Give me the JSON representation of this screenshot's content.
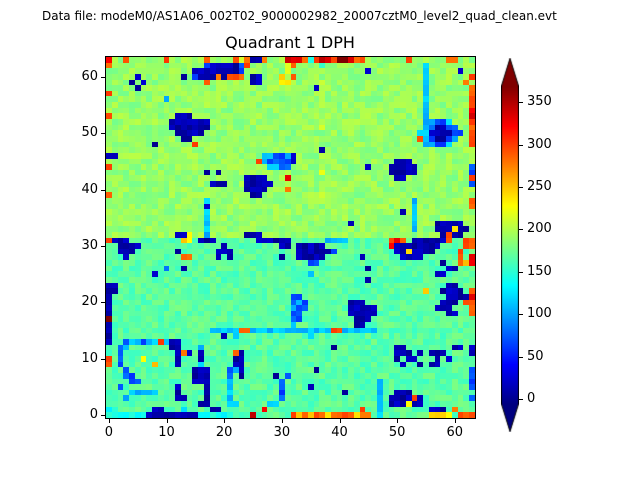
{
  "header": {
    "text": "Data file: modeM0/AS1A06_002T02_9000002982_20007cztM0_level2_quad_clean.evt"
  },
  "colors": {
    "axes": "#000000",
    "background": "#ffffff",
    "text": "#000000"
  },
  "chart_data": {
    "type": "heatmap",
    "title": "Quadrant 1 DPH",
    "suptitle": "Data file: modeM0/AS1A06_002T02_9000002982_20007cztM0_level2_quad_clean.evt",
    "grid_size": [
      64,
      64
    ],
    "x_range": [
      -0.5,
      63.5
    ],
    "y_range": [
      -0.5,
      63.5
    ],
    "x_ticks": [
      0,
      10,
      20,
      30,
      40,
      50,
      60
    ],
    "y_ticks": [
      0,
      10,
      20,
      30,
      40,
      50,
      60
    ],
    "colormap": "jet",
    "vmin": -6,
    "vmax": 369,
    "colorbar_ticks": [
      0,
      50,
      100,
      150,
      200,
      250,
      300,
      350
    ],
    "colorbar_extend": "both",
    "legend_position": "right",
    "grid_on": false,
    "palette": {
      "N": 12,
      "B": 70,
      "C": 112,
      "c": 142,
      ".": 168,
      ",": 190,
      "y": 215,
      "Y": 240,
      "o": 290,
      "r": 335,
      "R": 368
    },
    "noise_amplitude": 13,
    "rows_top_to_bottom": [
      [
        "r,,o,,,,",
        ",,o,,,,,",
        ",o,,,,oy",
        "oNNo,,,r",
        "rrocorro",
        "RRroo,,,",
        ",,,,o,,,",
        ",,,oo,,,"
      ],
      [
        "o,,,,,,,",
        ",,,,,,,,",
        ",BNNNNNB",
        "o,,,,,,y",
        "o,,,,c,,",
        ",,,,,,,,",
        ",,,,,,,C",
        ",,,,,,,,"
      ],
      [
        ",,,,,,,,",
        ",,,,,,,N",
        "NNNNNNNB",
        ",,,,,,,y",
        ",,,,,,,,",
        ",,,,,N,,",
        ",,,,,,,C",
        ",,,,,N,,"
      ],
      [
        ",,,,,N,,",
        ",,,,,N,B",
        "NNNoNooo",
        ",NN,,,Y,",
        "o,,,,,,,",
        ",,,,,,,,",
        ",,,,,,,C",
        ",,,,,,,o"
      ],
      [
        ",,,,N,N,",
        ",,,,,,,,",
        ",o,,,,,,",
        ",NN,,,YY",
        ",,,,,y,,",
        ",,,,,,,,",
        ",,,,,,,C",
        ",,,,,,o,"
      ],
      [
        ",,,,,N,,",
        ",,,,,,,,",
        ",,,,,,,,",
        ",,,,,,,,",
        ",,,,N,,,",
        ",,,,,,,,",
        ",,,,,,,C",
        ",,,,,,,o"
      ],
      [
        "o,,,,,,,",
        ",,,,,,,,",
        ",,,,,,,,",
        ",,,,,,,,",
        ",,,,,,,,",
        ",,,,,,,,",
        ",,,,,,,C",
        ",,,,,,,o"
      ],
      [
        ",,,,,,,,",
        ",,C,,,,,",
        ",,,,,,,,",
        ",,,,,,,,",
        ",,,,,,,,",
        ",,,,,,,,",
        ",,,,,,,C",
        ",,,,,,,o"
      ],
      [
        ",,,,,,,,",
        ",,,,,,,,",
        ",,,,,,,,",
        ",,,,,,,,",
        ",,,,,y,,",
        ",,,,,,,,",
        ",,,,,,,C",
        ",,,,,,,o"
      ],
      [
        ",,,,,,,,",
        ",,,,,,,,",
        ",,,,,,,,",
        ",,,,,,,,",
        ",,,,,,,,",
        ",,,,,,,,",
        ",,,,,,,C",
        ",,,,,,,r"
      ],
      [
        "o,,,,,,,",
        ",,,,NNN,",
        ",,,,,,,,",
        ",,,,,,,,",
        ",,,,,,,,",
        ",,,,,,,,",
        ",,,,,,,C",
        ",,,,,,,r"
      ],
      [
        ",,,,,,,,",
        ",,,NNNNN",
        "NN,,,,,,",
        ",,,,,,,,",
        ",,,,,,,,",
        ",,,,,,,,",
        ",,,,,,,C",
        "CBBC,,,o"
      ],
      [
        ",,,,,,,,",
        ",,,NNNNN",
        "NN,,,,,,",
        ",,,,,,,,",
        ",,,,,y,,",
        ",,,,,,,,",
        ",,,,,,,C",
        "BNNBB,,o"
      ],
      [
        ",,,,,,,,",
        ",,,,NNNN",
        "N,,,,,,,",
        ",,,,,,,,",
        ",,,,,,,,",
        ",,,,,,,,",
        ",,,,,,CC",
        "NNNNBB,o"
      ],
      [
        ",,,,,,,,",
        ",,,,,NN,",
        ",,,,,,,,",
        ",,,,,,,,",
        ",,,,,,,,",
        ",,,,,,,,",
        ",,,,,,oC",
        "BNNBC,,o"
      ],
      [
        ",,,,,,,,",
        "N,,,,,,o",
        ",,,,,,,,",
        ",,,,,,,,",
        ",,,,,,,,",
        ",,,,,,,,",
        ",,,,,,,C",
        "CBBC,,,o"
      ],
      [
        ",,,,,,,,",
        ",,,,,,,,",
        ",,,,,,,,",
        ",,,,,,,,",
        ",,,,,N,,",
        ",,,,,,,,",
        ",,,,,,,,",
        ",,,,,,,,"
      ],
      [
        "NN,,,,,,",
        ",,,,,,,,",
        ",,,,,,,,",
        ",,,CCBBC",
        "N,,,,,,,",
        ",,,,,,,,",
        ",,,,,,,,",
        ",,,,,,,,"
      ],
      [
        ",,,,,,,,",
        ",,,,,,,,",
        ",,,,,,,,",
        ",,oCBBBB",
        "N,,,,,,,",
        ",,,,,,,,",
        ",,NNN,,,",
        ",,,,,,,,"
      ],
      [
        "o,,,,,,,",
        ",,,,,,,,",
        ",,,,,,,,",
        ",,,,CCBB",
        ",,,,,,,,",
        ",,,,,N,,",
        ",NNNNN,,",
        ",,,,,,,B"
      ],
      [
        ",,,,,,,,",
        ",,,,,,,,",
        ",N,N,,,,",
        ",,,,,,,,",
        ",,,,,y,,",
        ",,,,,,,,",
        ",NNNNN,,",
        ",,,,,,,B"
      ],
      [
        ",,,,,,,,",
        ",,,,,,,,",
        ",,,,,,,,",
        "NNNN,,,r",
        ",,,,,,,,",
        ",,,,,,,,",
        ",,NN,,,,",
        ",,,,,,,o"
      ],
      [
        ",,,,,,,,",
        ",,,,,,,,",
        ",,NNN,,,",
        "NNNNN,,,",
        ",,,,,,,,",
        ",,,,,,,,",
        ",,,,,,,,",
        ",,,,,,,B"
      ],
      [
        ",,,,,,,,",
        ",,,,,,,,",
        ",,,,,,,,",
        "NNNN,,,o",
        ",,,,,,,,",
        ",,,,,,,,",
        ",,,,,,,,",
        ",,,,,,,,"
      ],
      [
        "o,,,,,,,",
        ",,,,,,,,",
        ",,,,,,,,",
        ",NN,,,,,",
        ",,,,,y,,",
        ",,,,,,,,",
        ",,,,,,,,",
        ",,,,,,,,"
      ],
      [
        ",,,,,,,,",
        ",,,,,,,,",
        ",C,,,,,,",
        ",,,,,,,,",
        ",,,,,,,,",
        ",,,,,,,,",
        ",,,,,C,,",
        ",,,,,,,o"
      ],
      [
        ",,,,,,,,",
        ",,,,,,,,",
        ",N,,,,,,",
        ",,,,,,,,",
        ",,,,,,,,",
        ",,,,,,,,",
        ",,,,,C,,",
        ",,,,,,,o"
      ],
      [
        ",,,,,,,,",
        ",,,,,,,,",
        ",C,,,,,,",
        ",,,,,,,,",
        ",,,,,,,,",
        ",,,,,,,,",
        ",,,N,C,,",
        ",,,,,,,,"
      ],
      [
        ",,,,,,,,",
        ",,,,,,,,",
        ",C,,,,,,",
        ",,,,,,,,",
        ",,,,,,,,",
        ",,,,,,,,",
        ",,,,,C,,",
        ",,,,,,,,"
      ],
      [
        ",,,,,,,,",
        ",,,,,,,,",
        ",C,,,,,,",
        ",,,,,,,,",
        ",,,,,,,,",
        ",,N,,,,,",
        ",,,,,C,,",
        ",NNNNN,,"
      ],
      [
        ",,,,,,,,",
        ",,,,,,,,",
        ",C,,,,,,",
        ",,,,,,,,",
        ",,,,,,,,",
        ",,,,,,,,",
        ",,,,,C,,",
        ",NNNYNN,"
      ],
      [
        ",,,,,,,,",
        ",,,,NNY,",
        ",C,,,,,,",
        "NNN,,,,,",
        ",,,,,,,,",
        ",,,,,,,,",
        ",,,,,,,,",
        ",,NoNN,,"
      ],
      [
        "oNNN....",
        ".....YY.",
        "NNN.....",
        "..NNNNNN",
        "......CC",
        "CC......",
        ".oro.NNN",
        "NNNo..oo"
      ],
      [
        "..NNNN..",
        "........",
        "....N...",
        "......NN",
        ".NNNNN..",
        "........",
        ".rNNNNNN",
        "NN....oo"
      ],
      [
        "..NNN...",
        "....N...",
        "...NNN..",
        "........",
        ".NNNNNNB",
        "........",
        "..NNYNNN",
        "N....o.."
      ],
      [
        "...N....",
        ".....oo.",
        "...N.N..",
        "......N.",
        ".NNNNN..",
        "....N...",
        "...NNNN.",
        ".....o.r"
      ],
      [
        "........",
        "........",
        "........",
        "........",
        "...BB...",
        "........",
        "........",
        "..N..oYr"
      ],
      [
        "........",
        "..B..N..",
        "........",
        "........",
        "........",
        ".....N..",
        "........",
        "...NN..."
      ],
      [
        "........",
        "N.......",
        "........",
        "........",
        "...C....",
        "........",
        "........",
        ".NN....."
      ],
      [
        "........",
        "........",
        "........",
        "........",
        "........",
        ".....N..",
        "........",
        "........"
      ],
      [
        "NN......",
        "........",
        "........",
        "........",
        "........",
        "........",
        "........",
        "...NN..."
      ],
      [
        "NN......",
        "........",
        "........",
        "........",
        "........",
        "........",
        ".......Y",
        "..NNNN.o"
      ],
      [
        "N.......",
        "........",
        "........",
        "........",
        "BB......",
        "........",
        "........",
        "...NNNNr"
      ],
      [
        "N.......",
        "........",
        "........",
        "........",
        "BCB.....",
        "..NNN...",
        "........",
        "..NNN.oo"
      ],
      [
        "N.......",
        "........",
        "........",
        "........",
        "CBB.....",
        "..NNNNN.",
        "........",
        ".NNN...o"
      ],
      [
        "N.......",
        "........",
        "........",
        "........",
        "BB......",
        "..NNNNN.",
        "........",
        "...NN..o"
      ],
      [
        "R.......",
        "........",
        "........",
        "........",
        "BB......",
        "...NNN..",
        "........",
        "........"
      ],
      [
        "N.......",
        "........",
        "........",
        "........",
        "C.......",
        "...NN...",
        "........",
        "........"
      ],
      [
        "N.......",
        "........",
        "..CCCCCo",
        "oCCCCCCC",
        "CCCCCCCo",
        "oCCCCCC.",
        "........",
        "........"
      ],
      [
        "N.......",
        "........",
        "....N.C.",
        "........",
        "...C....",
        "........",
        "........",
        "........"
      ],
      [
        "N..BCCBC",
        "CoCNN...",
        "........",
        "........",
        "........",
        "........",
        "........",
        "........"
      ],
      [
        "..BC....",
        "...NN...",
        "C.......",
        "........",
        ".......N",
        "........",
        "..NN....",
        "....NN.N"
      ],
      [
        "..B.....",
        "....NoN.",
        "N.....oN",
        "........",
        "........",
        "........",
        "..NNN.N.",
        "NNN....N"
      ],
      [
        "o.B...Y.",
        "....N...",
        "N.....NN",
        "........",
        "........",
        "........",
        "..N.NN..",
        ".N.N...."
      ],
      [
        "o.B.....",
        "Y...N...",
        "C.....NN",
        "........",
        "........",
        "........",
        "...N..N.",
        "NN......"
      ],
      [
        "...B....",
        ".......N",
        "NN...BCN",
        "........",
        "....N...",
        "........",
        "........",
        ".......B"
      ],
      [
        "...BB...",
        ".......N",
        "NN...B.N",
        ".....N.B",
        "........",
        "........",
        "........",
        ".......B"
      ],
      [
        "....BB..",
        ".......N",
        "NN...C..",
        "......B.",
        "........",
        ".......C",
        "........",
        ".......B"
      ],
      [
        "..B.....",
        "....N...",
        ".N...C..",
        "......B.",
        "...N....",
        ".......C",
        "........",
        ".......B"
      ],
      [
        "....CCCC",
        "C...N...",
        ".N...C..",
        "......B.",
        "........",
        ".N.....C",
        "..NNN...",
        "........"
      ],
      [
        "...C....",
        "....NN..",
        ".N...C..",
        "......B.",
        "........",
        ".......C",
        ".NNNNoN.",
        ".......B"
      ],
      [
        "........",
        "........",
        "NN...CC.",
        "....CC..",
        "........",
        ".......C",
        ".NNNYNN.",
        "........"
      ],
      [
        "cc......",
        "NN...C..",
        "..NN....",
        "...r....",
        "........",
        "....o..C",
        "........",
        "NNN.o..."
      ],
      [
        "cccccccN",
        "NNNNNNNN",
        "cccccc..",
        ".r......",
        "oYoYooYo",
        "oooYoo.C",
        "........",
        "YYYY.ooo"
      ]
    ]
  }
}
